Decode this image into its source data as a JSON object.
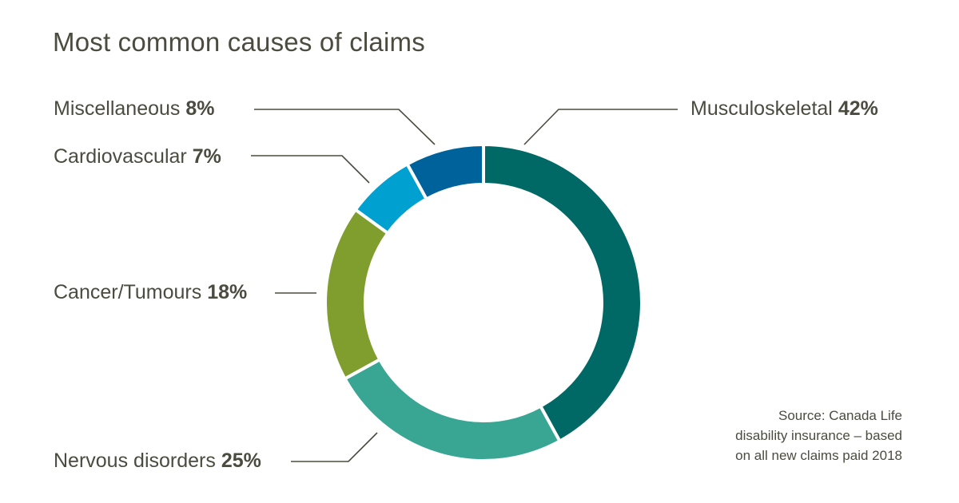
{
  "chart_data": {
    "type": "pie",
    "variant": "donut",
    "title": "Most common causes of claims",
    "slices": [
      {
        "label": "Musculoskeletal",
        "value": 42,
        "value_label": "42%",
        "color": "#006966"
      },
      {
        "label": "Nervous disorders",
        "value": 25,
        "value_label": "25%",
        "color": "#38a693"
      },
      {
        "label": "Cancer/Tumours",
        "value": 18,
        "value_label": "18%",
        "color": "#7f9e2d"
      },
      {
        "label": "Cardiovascular",
        "value": 7,
        "value_label": "7%",
        "color": "#00a0d1"
      },
      {
        "label": "Miscellaneous",
        "value": 8,
        "value_label": "8%",
        "color": "#00629b"
      }
    ],
    "label_color": "#4b4b3f",
    "leader_line_color": "#4b4b3f"
  },
  "source": {
    "line1": "Source: Canada Life",
    "line2": "disability insurance – based",
    "line3": "on all new claims paid 2018"
  }
}
